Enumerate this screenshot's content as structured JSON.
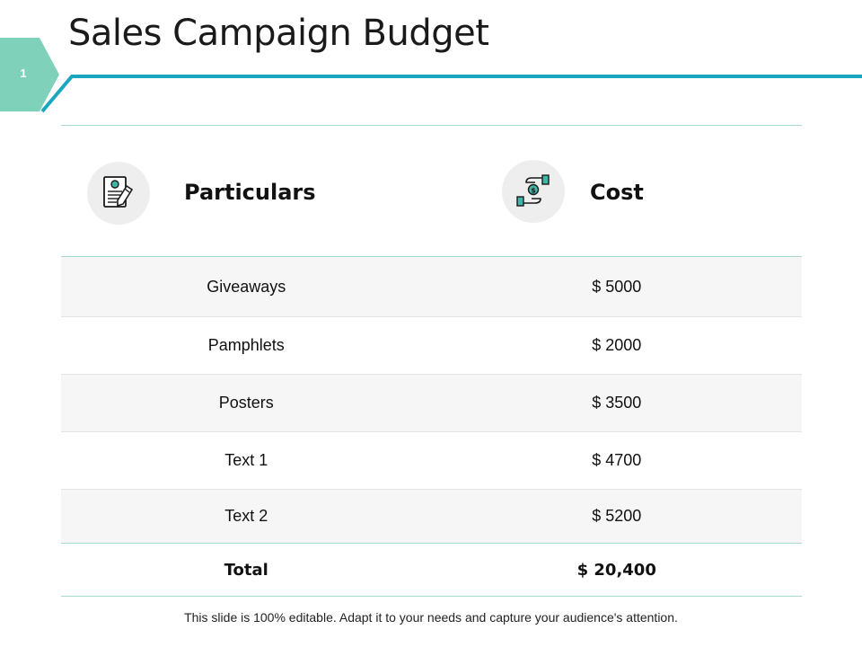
{
  "slide": {
    "title": "Sales Campaign Budget",
    "number": "1",
    "footer": "This slide is 100% editable. Adapt it to your needs and capture your audience's attention."
  },
  "colors": {
    "accent": "#1ba6bf",
    "tab": "#7fd1b9",
    "divider": "#a8d9d0",
    "icon_circle": "#eeeeee",
    "row_alt": "#f6f6f6"
  },
  "table": {
    "headers": [
      {
        "label": "Particulars",
        "icon": "document-certificate-icon"
      },
      {
        "label": "Cost",
        "icon": "hands-money-icon"
      }
    ],
    "rows": [
      {
        "particular": "Giveaways",
        "cost": "$ 5000"
      },
      {
        "particular": "Pamphlets",
        "cost": "$ 2000"
      },
      {
        "particular": "Posters",
        "cost": "$ 3500"
      },
      {
        "particular": "Text 1",
        "cost": "$ 4700"
      },
      {
        "particular": "Text 2",
        "cost": "$ 5200"
      }
    ],
    "total": {
      "label": "Total",
      "cost": "$ 20,400"
    }
  }
}
